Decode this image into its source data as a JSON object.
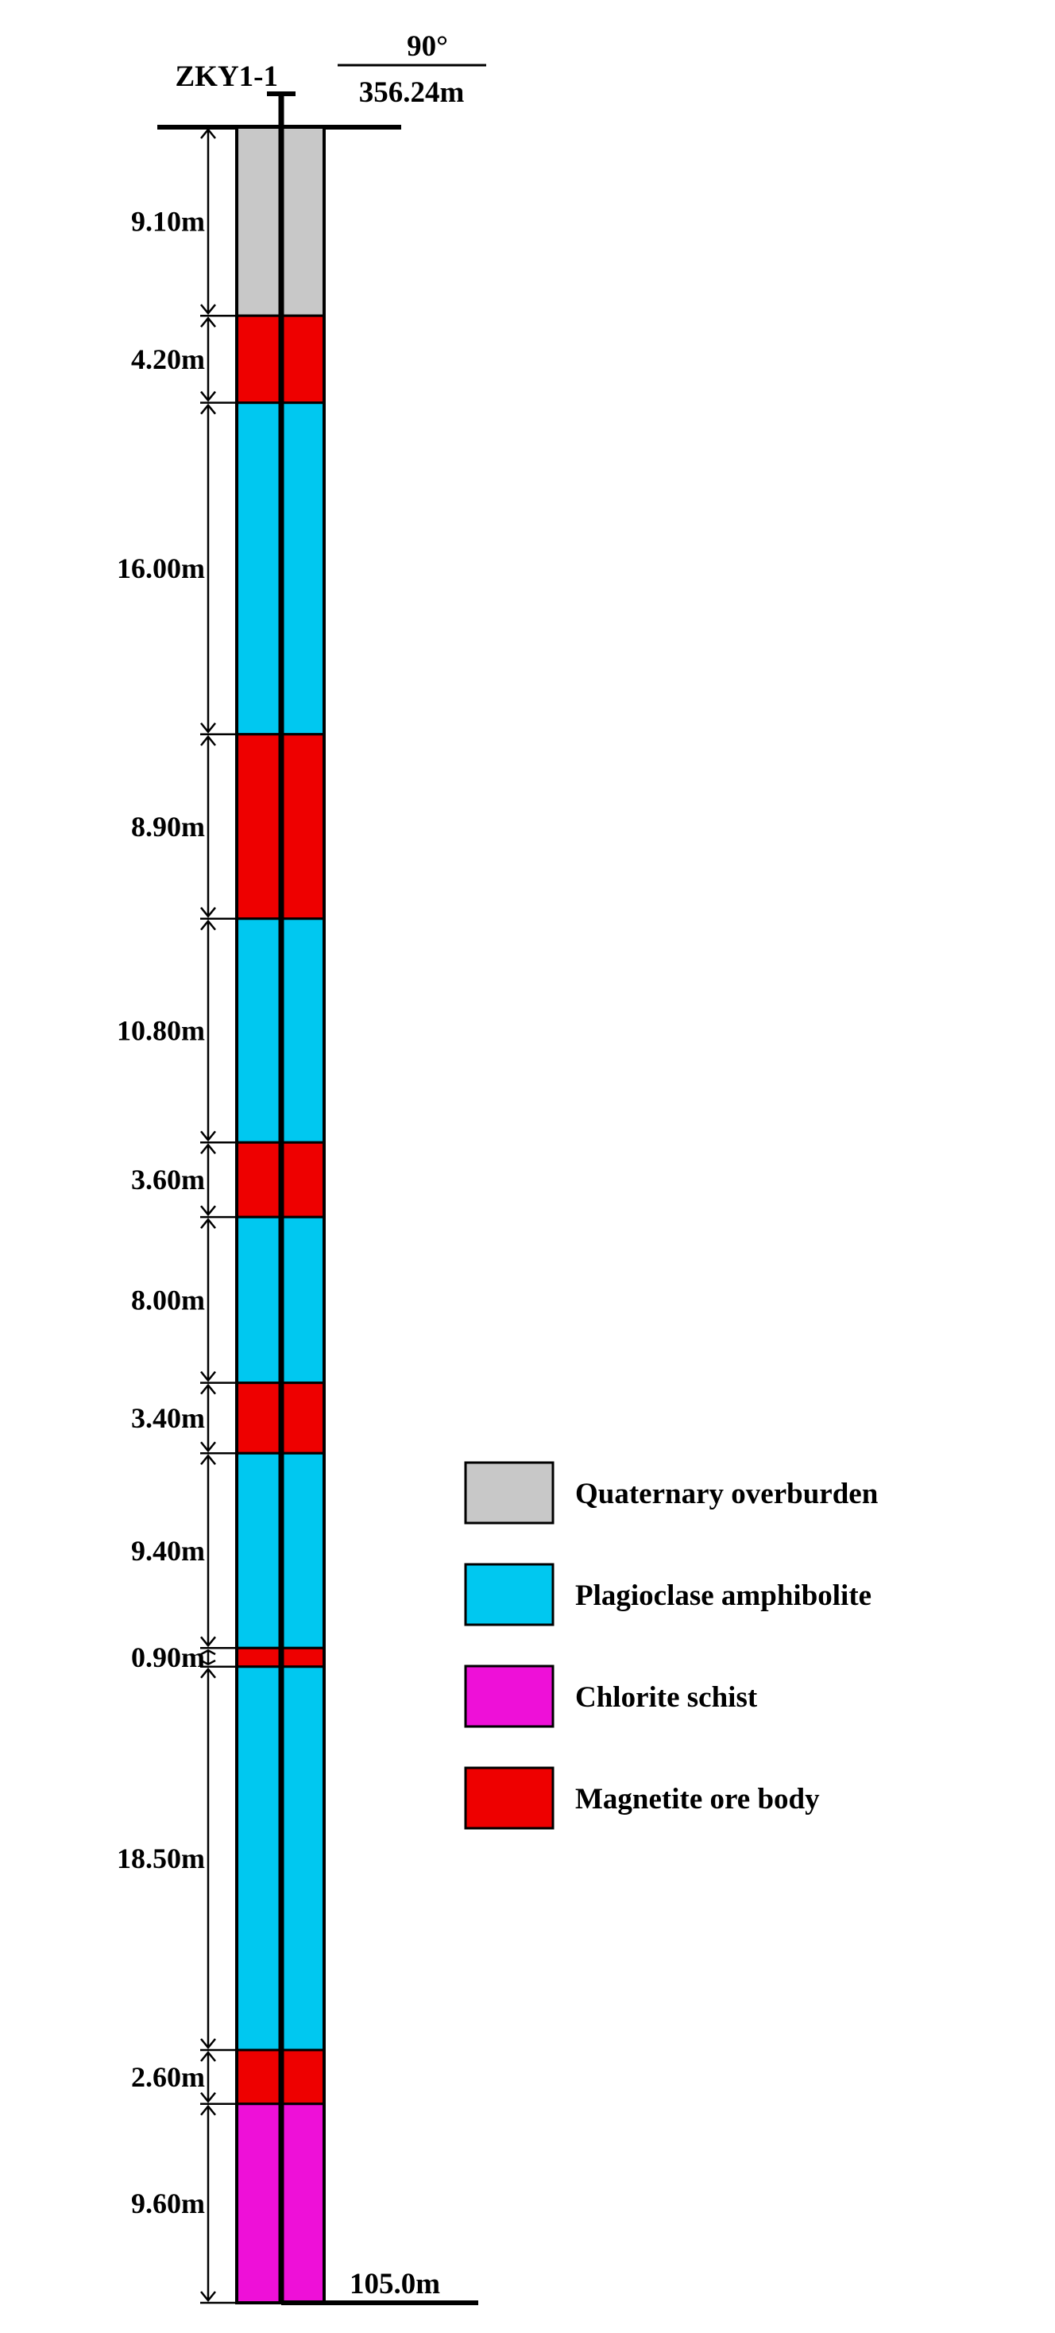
{
  "hole": {
    "name": "ZKY1-1",
    "angle": "90°",
    "elevation": "356.24m",
    "total_depth_label": "105.0m"
  },
  "layers": [
    {
      "thickness_label": "9.10m",
      "thickness": 9.1,
      "lithology": "quaternary"
    },
    {
      "thickness_label": "4.20m",
      "thickness": 4.2,
      "lithology": "magnetite"
    },
    {
      "thickness_label": "16.00m",
      "thickness": 16.0,
      "lithology": "plagioclase"
    },
    {
      "thickness_label": "8.90m",
      "thickness": 8.9,
      "lithology": "magnetite"
    },
    {
      "thickness_label": "10.80m",
      "thickness": 10.8,
      "lithology": "plagioclase"
    },
    {
      "thickness_label": "3.60m",
      "thickness": 3.6,
      "lithology": "magnetite"
    },
    {
      "thickness_label": "8.00m",
      "thickness": 8.0,
      "lithology": "plagioclase"
    },
    {
      "thickness_label": "3.40m",
      "thickness": 3.4,
      "lithology": "magnetite"
    },
    {
      "thickness_label": "9.40m",
      "thickness": 9.4,
      "lithology": "plagioclase"
    },
    {
      "thickness_label": "0.90m",
      "thickness": 0.9,
      "lithology": "magnetite"
    },
    {
      "thickness_label": "18.50m",
      "thickness": 18.5,
      "lithology": "plagioclase"
    },
    {
      "thickness_label": "2.60m",
      "thickness": 2.6,
      "lithology": "magnetite"
    },
    {
      "thickness_label": "9.60m",
      "thickness": 9.6,
      "lithology": "chlorite"
    }
  ],
  "legend": [
    {
      "key": "quaternary",
      "label": "Quaternary overburden",
      "color": "#c8c8c8"
    },
    {
      "key": "plagioclase",
      "label": "Plagioclase amphibolite",
      "color": "#00c8f0"
    },
    {
      "key": "chlorite",
      "label": "Chlorite schist",
      "color": "#ee10d8"
    },
    {
      "key": "magnetite",
      "label": "Magnetite ore body",
      "color": "#ee0000"
    }
  ]
}
